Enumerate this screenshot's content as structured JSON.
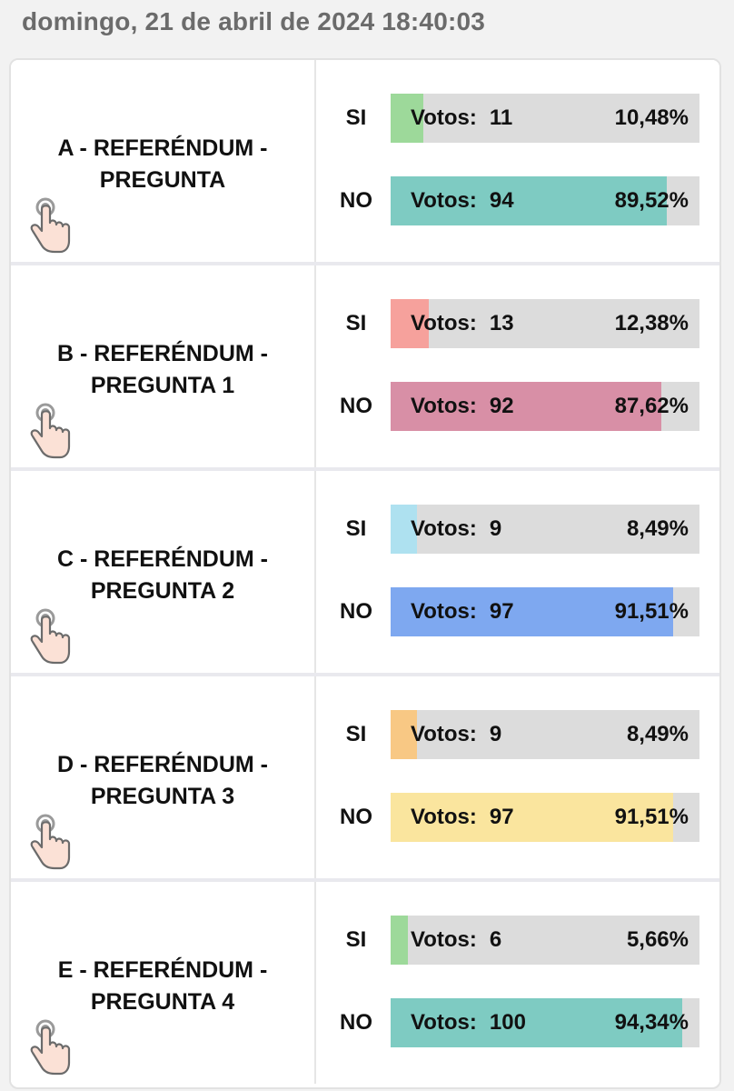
{
  "header": {
    "datetime": "domingo, 21 de abril de 2024 18:40:03"
  },
  "votes_label": "Votos:",
  "questions": [
    {
      "title_line1": "A - REFERÉNDUM -",
      "title_line2": "PREGUNTA",
      "si": {
        "label": "SI",
        "votes": "11",
        "percent_text": "10,48%",
        "fraction": 0.1048,
        "color": "#9dd99a"
      },
      "no": {
        "label": "NO",
        "votes": "94",
        "percent_text": "89,52%",
        "fraction": 0.8952,
        "color": "#7ecbc2"
      }
    },
    {
      "title_line1": "B - REFERÉNDUM -",
      "title_line2": "PREGUNTA 1",
      "si": {
        "label": "SI",
        "votes": "13",
        "percent_text": "12,38%",
        "fraction": 0.1238,
        "color": "#f6a19c"
      },
      "no": {
        "label": "NO",
        "votes": "92",
        "percent_text": "87,62%",
        "fraction": 0.8762,
        "color": "#d88fa6"
      }
    },
    {
      "title_line1": "C - REFERÉNDUM -",
      "title_line2": "PREGUNTA 2",
      "si": {
        "label": "SI",
        "votes": "9",
        "percent_text": "8,49%",
        "fraction": 0.0849,
        "color": "#aee1f0"
      },
      "no": {
        "label": "NO",
        "votes": "97",
        "percent_text": "91,51%",
        "fraction": 0.9151,
        "color": "#7ea8f0"
      }
    },
    {
      "title_line1": "D - REFERÉNDUM -",
      "title_line2": "PREGUNTA 3",
      "si": {
        "label": "SI",
        "votes": "9",
        "percent_text": "8,49%",
        "fraction": 0.0849,
        "color": "#f8c884"
      },
      "no": {
        "label": "NO",
        "votes": "97",
        "percent_text": "91,51%",
        "fraction": 0.9151,
        "color": "#fae59e"
      }
    },
    {
      "title_line1": "E - REFERÉNDUM -",
      "title_line2": "PREGUNTA 4",
      "si": {
        "label": "SI",
        "votes": "6",
        "percent_text": "5,66%",
        "fraction": 0.0566,
        "color": "#9dd99a"
      },
      "no": {
        "label": "NO",
        "votes": "100",
        "percent_text": "94,34%",
        "fraction": 0.9434,
        "color": "#7ecbc2"
      }
    }
  ],
  "icons": {
    "select": "tap-hand-icon"
  }
}
